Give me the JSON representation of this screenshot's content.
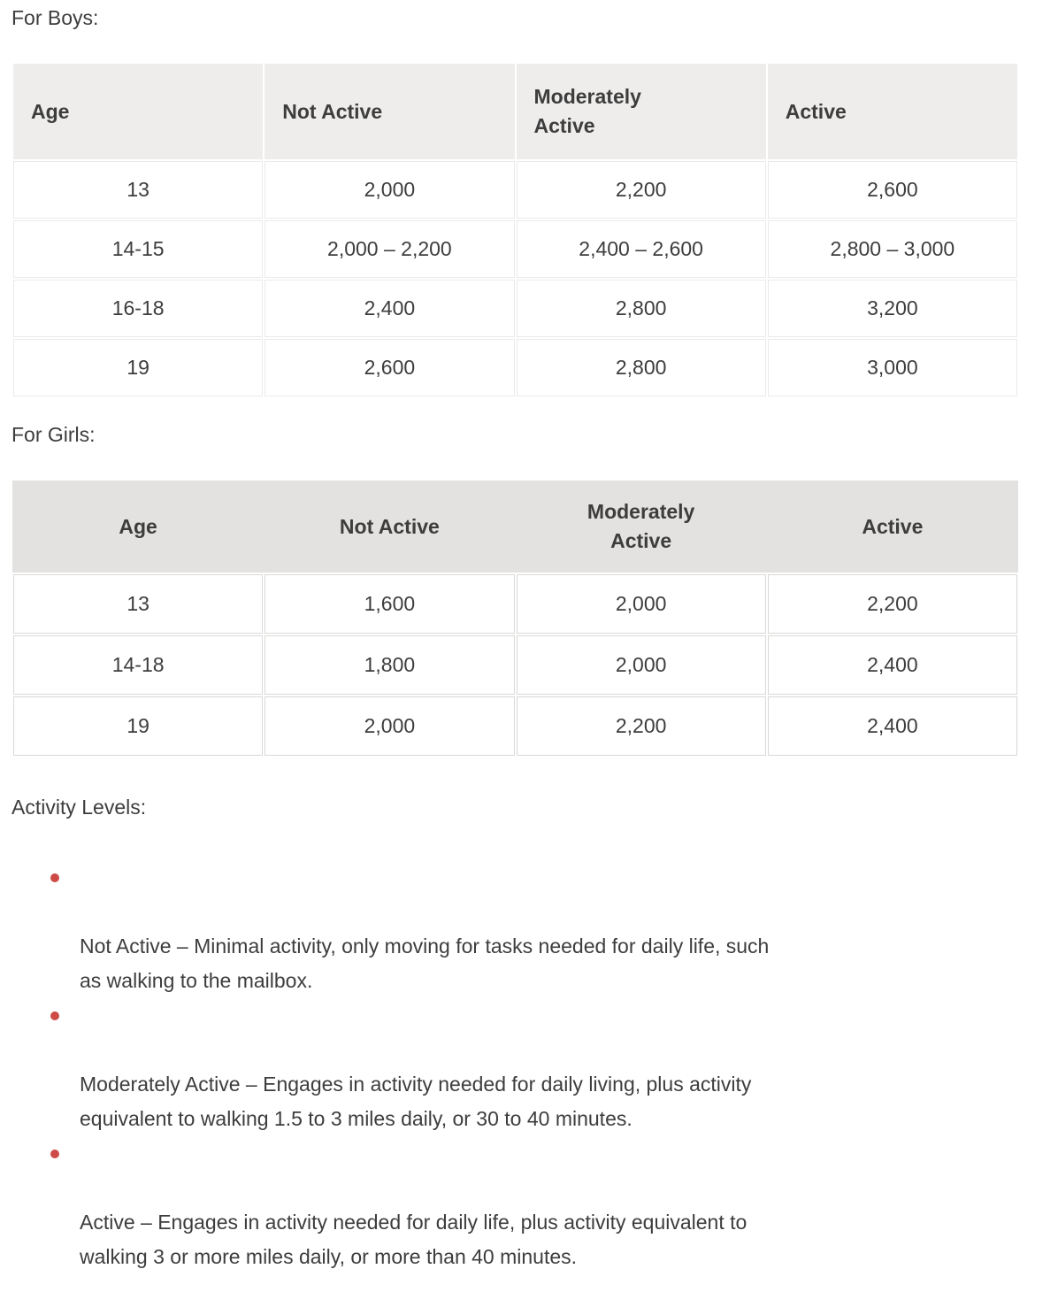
{
  "colors": {
    "text": "#3d3d3d",
    "boys_header_bg": "#eeedec",
    "girls_header_bg": "#e3e2e0",
    "boys_cell_border": "#eaeaea",
    "girls_cell_border": "#d9d9d7",
    "bullet": "#ce4a46"
  },
  "boys": {
    "heading": "For Boys:",
    "headers": [
      "Age",
      "Not Active",
      "Moderately\nActive",
      "Active"
    ],
    "rows": [
      [
        "13",
        "2,000",
        "2,200",
        "2,600"
      ],
      [
        "14-15",
        "2,000 – 2,200",
        "2,400 – 2,600",
        "2,800 – 3,000"
      ],
      [
        "16-18",
        "2,400",
        "2,800",
        "3,200"
      ],
      [
        "19",
        "2,600",
        "2,800",
        "3,000"
      ]
    ]
  },
  "girls": {
    "heading": "For Girls:",
    "headers": [
      "Age",
      "Not Active",
      "Moderately\nActive",
      "Active"
    ],
    "rows": [
      [
        "13",
        "1,600",
        "2,000",
        "2,200"
      ],
      [
        "14-18",
        "1,800",
        "2,000",
        "2,400"
      ],
      [
        "19",
        "2,000",
        "2,200",
        "2,400"
      ]
    ]
  },
  "activity": {
    "heading": "Activity Levels:",
    "items": [
      "Not Active – Minimal activity, only moving for tasks needed for daily life, such\nas walking to the mailbox.",
      "Moderately Active – Engages in activity needed for daily living, plus activity\nequivalent to walking 1.5 to 3 miles daily, or 30 to 40 minutes.",
      "Active – Engages in activity needed for daily life, plus activity equivalent to\nwalking 3 or more miles daily, or more than 40 minutes."
    ]
  }
}
